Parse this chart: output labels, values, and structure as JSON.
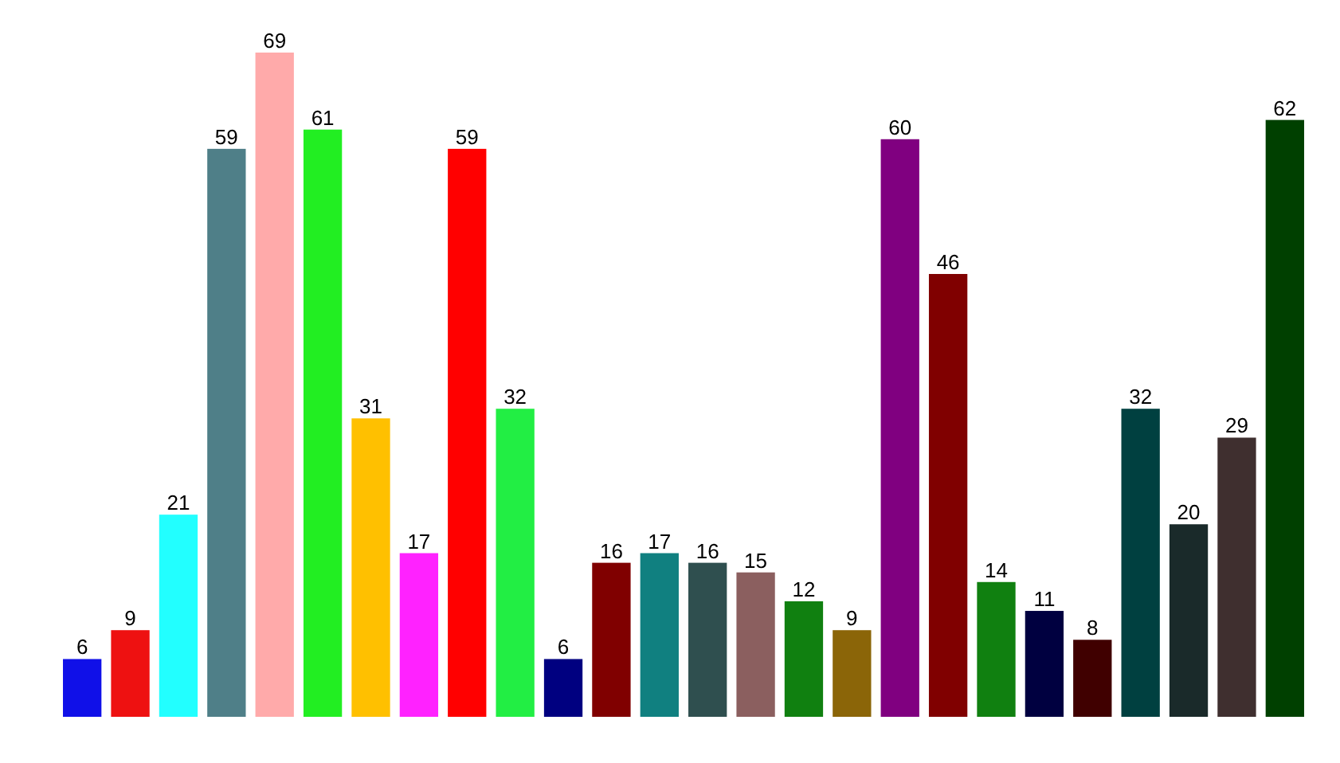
{
  "chart_data": {
    "type": "bar",
    "categories": [
      null,
      null,
      null,
      null,
      null,
      null,
      null,
      null,
      null,
      null,
      null,
      null,
      null,
      null,
      null,
      null,
      null,
      null,
      null,
      null,
      null,
      null,
      null,
      null,
      null,
      null
    ],
    "values": [
      6,
      9,
      21,
      59,
      69,
      61,
      31,
      17,
      59,
      32,
      6,
      16,
      17,
      16,
      15,
      12,
      9,
      60,
      46,
      14,
      11,
      8,
      32,
      20,
      29,
      62
    ],
    "colors": [
      "#1010e8",
      "#ee1111",
      "#22ffff",
      "#4f7f88",
      "#ffaaaa",
      "#22ee22",
      "#ffc000",
      "#ff22ff",
      "#ff0000",
      "#22ee44",
      "#000080",
      "#800000",
      "#108080",
      "#2f4f4f",
      "#8b5f5f",
      "#108010",
      "#8b6508",
      "#800080",
      "#800000",
      "#108010",
      "#000040",
      "#400000",
      "#004040",
      "#1a2a2a",
      "#3f2f2f",
      "#004000"
    ],
    "data_labels": true
  }
}
